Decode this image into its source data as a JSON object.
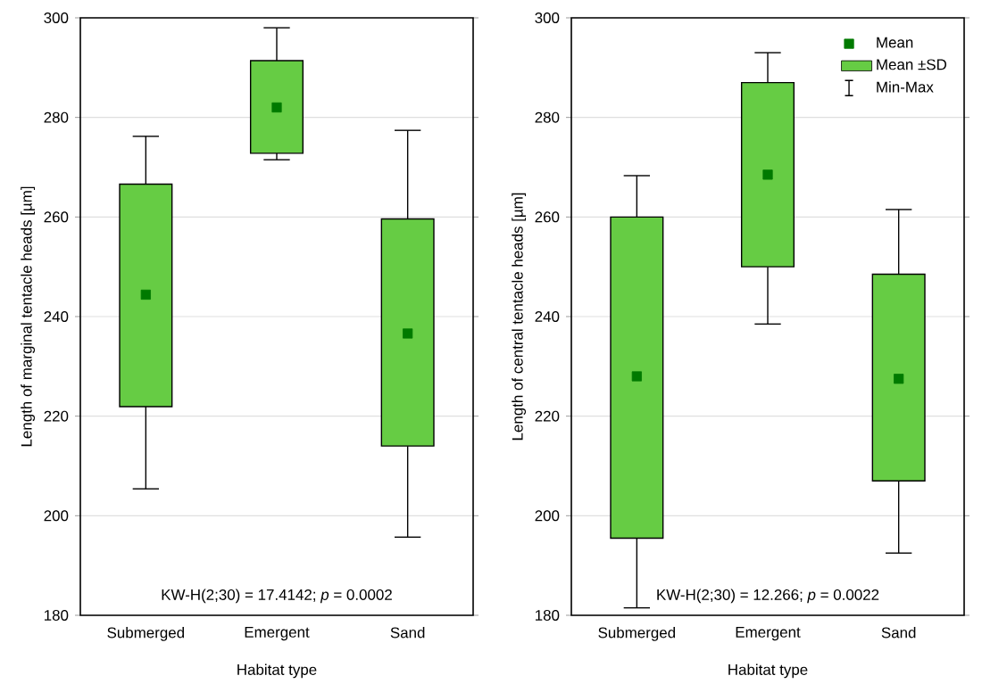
{
  "chart_data": [
    {
      "type": "box",
      "xlabel": "Habitat type",
      "ylabel": "Length of marginal tentacle heads [µm]",
      "categories": [
        "Submerged",
        "Emergent",
        "Sand"
      ],
      "ylim": [
        180,
        300
      ],
      "yticks": [
        180,
        200,
        220,
        240,
        260,
        280,
        300
      ],
      "grid": "y",
      "marker": "square",
      "series": [
        {
          "color": "#66cc44",
          "boxes": [
            {
              "low": 205.4,
              "q1": 221.9,
              "mean": 244.4,
              "q3": 266.6,
              "high": 276.2
            },
            {
              "low": 271.5,
              "q1": 272.8,
              "mean": 282,
              "q3": 291.4,
              "high": 298
            },
            {
              "low": 195.7,
              "q1": 214,
              "mean": 236.6,
              "q3": 259.6,
              "high": 277.4
            }
          ]
        }
      ],
      "annotations": [
        "KW-H(2;30) = 17.4142; *p* = 0.0002"
      ]
    },
    {
      "type": "box",
      "xlabel": "Habitat type",
      "ylabel": "Length of central tentacle heads [µm]",
      "categories": [
        "Submerged",
        "Emergent",
        "Sand"
      ],
      "ylim": [
        180,
        300
      ],
      "yticks": [
        180,
        200,
        220,
        240,
        260,
        280,
        300
      ],
      "grid": "y",
      "marker": "square",
      "legend": "top right",
      "series": [
        {
          "name": "Mean ±SD",
          "color": "#66cc44",
          "boxes": [
            {
              "low": 181.5,
              "q1": 195.5,
              "mean": 228,
              "q3": 260,
              "high": 268.3
            },
            {
              "low": 238.5,
              "q1": 250,
              "mean": 268.5,
              "q3": 287,
              "high": 293
            },
            {
              "low": 192.5,
              "q1": 207,
              "mean": 227.5,
              "q3": 248.5,
              "high": 261.5
            }
          ]
        }
      ],
      "annotations": [
        "Mean",
        "Min-Max",
        "KW-H(2;30) = 12.266; *p* = 0.0022"
      ]
    }
  ]
}
